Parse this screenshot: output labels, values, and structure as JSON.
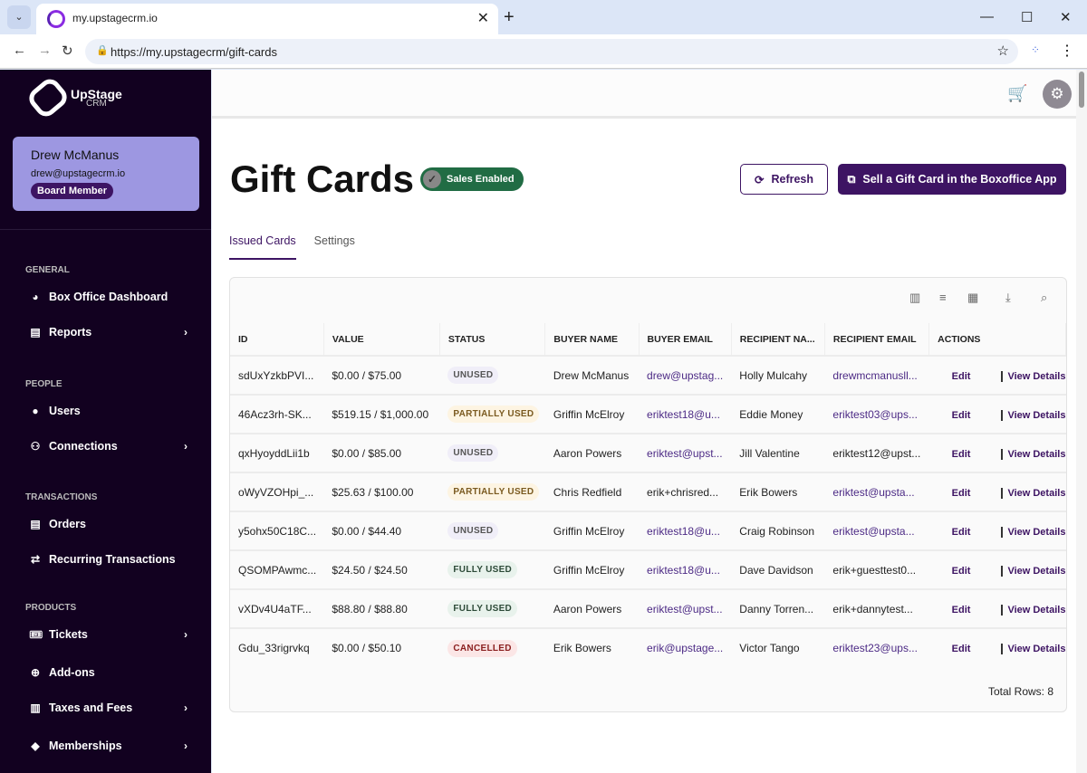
{
  "browser": {
    "tab_title": "my.upstagecrm.io",
    "url": "https://my.upstagecrm/gift-cards"
  },
  "sidebar": {
    "logo": {
      "name": "UpStage",
      "sub": "CRM"
    },
    "user": {
      "name": "Drew McManus",
      "email": "drew@upstagecrm.io",
      "role": "Board Member"
    },
    "sections": [
      {
        "label": "GENERAL",
        "items": [
          {
            "label": "Box Office Dashboard",
            "icon": "pie-chart-icon"
          },
          {
            "label": "Reports",
            "icon": "clipboard-icon",
            "chevron": true
          }
        ]
      },
      {
        "label": "PEOPLE",
        "items": [
          {
            "label": "Users",
            "icon": "user-circle-icon"
          },
          {
            "label": "Connections",
            "icon": "people-icon",
            "chevron": true
          }
        ]
      },
      {
        "label": "TRANSACTIONS",
        "items": [
          {
            "label": "Orders",
            "icon": "list-icon"
          },
          {
            "label": "Recurring Transactions",
            "icon": "repeat-icon"
          }
        ]
      },
      {
        "label": "PRODUCTS",
        "items": [
          {
            "label": "Tickets",
            "icon": "ticket-icon",
            "chevron": true
          },
          {
            "label": "Add-ons",
            "icon": "plus-circle-icon"
          },
          {
            "label": "Taxes and Fees",
            "icon": "receipt-icon",
            "chevron": true
          },
          {
            "label": "Memberships",
            "icon": "tag-icon",
            "chevron": true
          }
        ]
      }
    ]
  },
  "page": {
    "title": "Gift Cards",
    "badge": "Sales Enabled",
    "refresh": "Refresh",
    "sell": "Sell a Gift Card in the Boxoffice App",
    "tabs": [
      "Issued Cards",
      "Settings"
    ],
    "total": "Total Rows: 8"
  },
  "table": {
    "headers": [
      "ID",
      "VALUE",
      "STATUS",
      "BUYER NAME",
      "BUYER EMAIL",
      "RECIPIENT NA...",
      "RECIPIENT EMAIL",
      "ACTIONS"
    ],
    "edit": "Edit",
    "view": "View Details",
    "rows": [
      {
        "id": "sdUxYzkbPVI...",
        "value": "$0.00 / $75.00",
        "status": "UNUSED",
        "buyer": "Drew McManus",
        "buyer_email": "drew@upstag...",
        "recipient": "Holly Mulcahy",
        "recipient_email": "drewmcmanusll..."
      },
      {
        "id": "46Acz3rh-SK...",
        "value": "$519.15 / $1,000.00",
        "status": "PARTIALLY USED",
        "buyer": "Griffin McElroy",
        "buyer_email": "eriktest18@u...",
        "recipient": "Eddie Money",
        "recipient_email": "eriktest03@ups..."
      },
      {
        "id": "qxHyoyddLii1b",
        "value": "$0.00 / $85.00",
        "status": "UNUSED",
        "buyer": "Aaron Powers",
        "buyer_email": "eriktest@upst...",
        "recipient": "Jill Valentine",
        "recipient_email": "eriktest12@upst..."
      },
      {
        "id": "oWyVZOHpi_...",
        "value": "$25.63 / $100.00",
        "status": "PARTIALLY USED",
        "buyer": "Chris Redfield",
        "buyer_email": "erik+chrisred...",
        "recipient": "Erik Bowers",
        "recipient_email": "eriktest@upsta..."
      },
      {
        "id": "y5ohx50C18C...",
        "value": "$0.00 / $44.40",
        "status": "UNUSED",
        "buyer": "Griffin McElroy",
        "buyer_email": "eriktest18@u...",
        "recipient": "Craig Robinson",
        "recipient_email": "eriktest@upsta..."
      },
      {
        "id": "QSOMPAwmc...",
        "value": "$24.50 / $24.50",
        "status": "FULLY USED",
        "buyer": "Griffin McElroy",
        "buyer_email": "eriktest18@u...",
        "recipient": "Dave Davidson",
        "recipient_email": "erik+guesttest0..."
      },
      {
        "id": "vXDv4U4aTF...",
        "value": "$88.80 / $88.80",
        "status": "FULLY USED",
        "buyer": "Aaron Powers",
        "buyer_email": "eriktest@upst...",
        "recipient": "Danny Torren...",
        "recipient_email": "erik+dannytest..."
      },
      {
        "id": "Gdu_33rigrvkq",
        "value": "$0.00 / $50.10",
        "status": "CANCELLED",
        "buyer": "Erik Bowers",
        "buyer_email": "erik@upstage...",
        "recipient": "Victor Tango",
        "recipient_email": "eriktest23@ups..."
      }
    ]
  }
}
